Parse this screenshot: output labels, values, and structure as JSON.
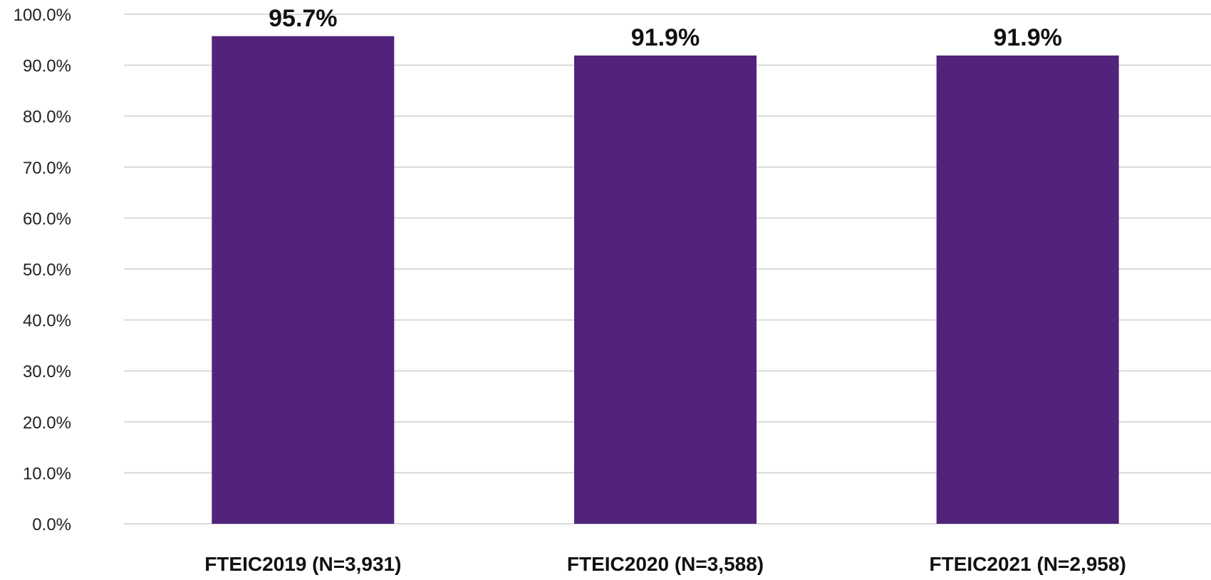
{
  "chart_data": {
    "type": "bar",
    "categories": [
      "FTEIC2019 (N=3,931)",
      "FTEIC2020 (N=3,588)",
      "FTEIC2021 (N=2,958)"
    ],
    "values": [
      95.7,
      91.9,
      91.9
    ],
    "data_labels": [
      "95.7%",
      "91.9%",
      "91.9%"
    ],
    "title": "",
    "xlabel": "",
    "ylabel": "",
    "ylim": [
      0,
      100
    ],
    "yticks": [
      "0.0%",
      "10.0%",
      "20.0%",
      "30.0%",
      "40.0%",
      "50.0%",
      "60.0%",
      "70.0%",
      "80.0%",
      "90.0%",
      "100.0%"
    ],
    "grid": true,
    "legend": "none",
    "bar_color": "#51237a"
  }
}
